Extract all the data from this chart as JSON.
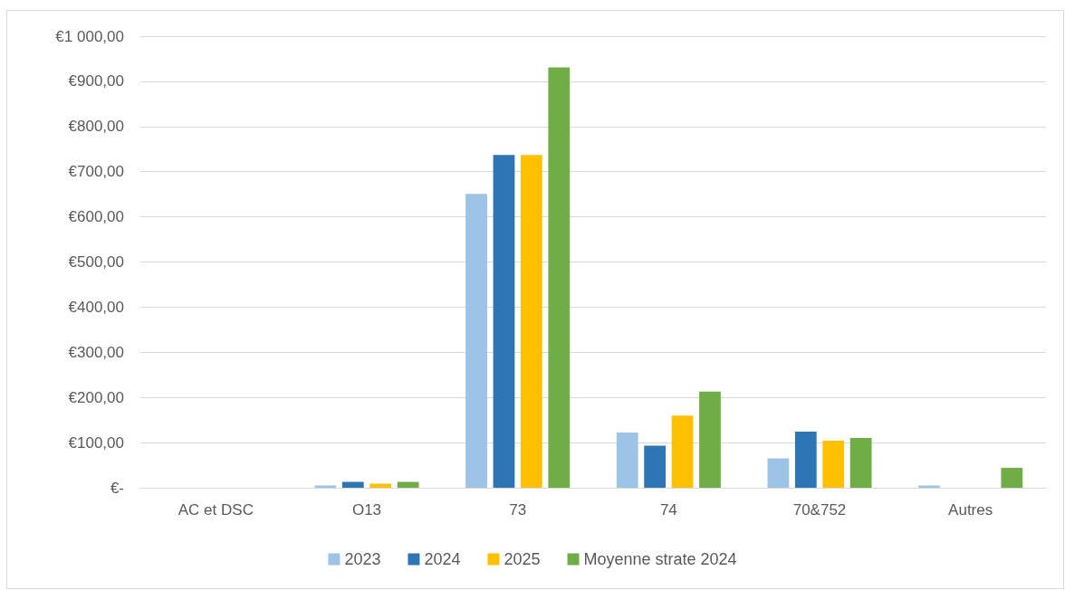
{
  "chart_data": {
    "type": "bar",
    "categories": [
      "AC et DSC",
      "O13",
      "73",
      "74",
      "70&752",
      "Autres"
    ],
    "series": [
      {
        "name": "2023",
        "color": "#9dc3e6",
        "values": [
          null,
          5,
          651,
          122,
          65,
          5
        ]
      },
      {
        "name": "2024",
        "color": "#2e75b6",
        "values": [
          null,
          13,
          737,
          93,
          124,
          null
        ]
      },
      {
        "name": "2025",
        "color": "#ffc000",
        "values": [
          null,
          9,
          737,
          160,
          104,
          null
        ]
      },
      {
        "name": "Moyenne strate 2024",
        "color": "#70ad47",
        "values": [
          null,
          13,
          931,
          213,
          110,
          44
        ]
      }
    ],
    "ylim": [
      0,
      1000
    ],
    "yticks": [
      {
        "value": 0,
        "label": "€-"
      },
      {
        "value": 100,
        "label": "€100,00"
      },
      {
        "value": 200,
        "label": "€200,00"
      },
      {
        "value": 300,
        "label": "€300,00"
      },
      {
        "value": 400,
        "label": "€400,00"
      },
      {
        "value": 500,
        "label": "€500,00"
      },
      {
        "value": 600,
        "label": "€600,00"
      },
      {
        "value": 700,
        "label": "€700,00"
      },
      {
        "value": 800,
        "label": "€800,00"
      },
      {
        "value": 900,
        "label": "€900,00"
      },
      {
        "value": 1000,
        "label": "€1 000,00"
      }
    ],
    "grid": "y",
    "legend": "bottom"
  }
}
